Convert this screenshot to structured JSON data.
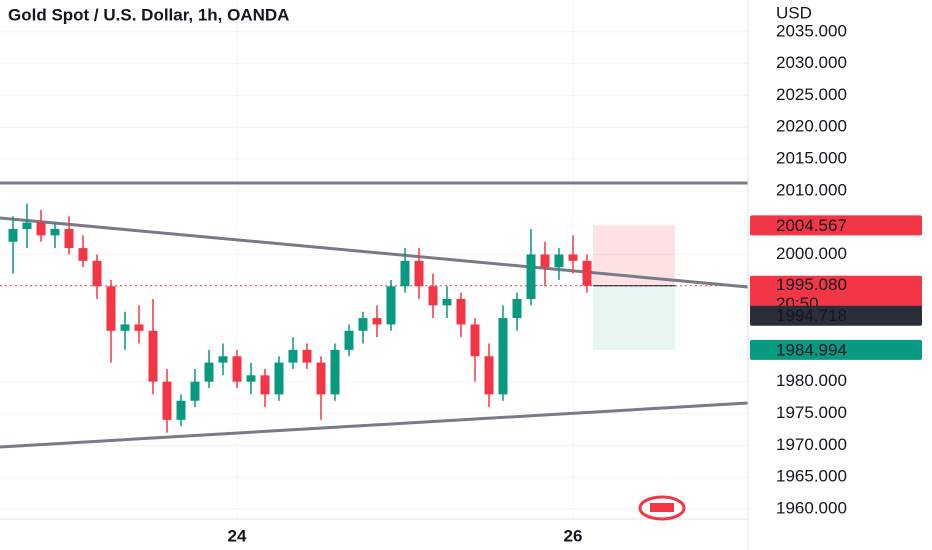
{
  "chart_data": {
    "type": "candlestick",
    "title": "Gold Spot / U.S. Dollar, 1h, OANDA",
    "y_axis_label": "USD",
    "categories": [
      null,
      null,
      null,
      null,
      null,
      null,
      null,
      null,
      null,
      null,
      null,
      null,
      null,
      null,
      null,
      null,
      "24",
      null,
      null,
      null,
      null,
      null,
      null,
      null,
      null,
      null,
      null,
      null,
      null,
      null,
      null,
      null,
      null,
      null,
      null,
      null,
      null,
      null,
      null,
      null,
      "26",
      null
    ],
    "open": [
      2002,
      2004,
      2005,
      2003,
      2004,
      2001,
      1999,
      1995,
      1988,
      1989,
      1988,
      1980,
      1974,
      1977,
      1980,
      1983,
      1984,
      1980,
      1981,
      1978,
      1983,
      1985,
      1983,
      1978,
      1985,
      1988,
      1990,
      1989,
      1995,
      1999,
      1995,
      1992,
      1993,
      1989,
      1984,
      1978,
      1990,
      1993,
      2000,
      1998,
      2000,
      1999
    ],
    "high": [
      2006,
      2008,
      2007,
      2005,
      2006,
      2003,
      2000,
      1996,
      1991,
      1992,
      1993,
      1982,
      1978,
      1982,
      1985,
      1986,
      1985,
      1983,
      1982,
      1984,
      1987,
      1986,
      1984,
      1986,
      1989,
      1991,
      1992,
      1996,
      2001,
      2001,
      1997,
      1995,
      1994,
      1990,
      1986,
      1992,
      1994,
      2004,
      2002,
      2001,
      2003,
      2000
    ],
    "low": [
      1997,
      2001,
      2002,
      2001,
      2000,
      1998,
      1993,
      1983,
      1985,
      1986,
      1978,
      1972,
      1973,
      1976,
      1979,
      1981,
      1979,
      1978,
      1976,
      1977,
      1982,
      1982,
      1974,
      1977,
      1984,
      1986,
      1987,
      1988,
      1994,
      1993,
      1990,
      1990,
      1987,
      1980,
      1976,
      1977,
      1988,
      1992,
      1995,
      1996,
      1997,
      1994
    ],
    "close": [
      2004,
      2005,
      2003,
      2004,
      2001,
      1999,
      1995,
      1988,
      1989,
      1988,
      1980,
      1974,
      1977,
      1980,
      1983,
      1984,
      1980,
      1981,
      1978,
      1983,
      1985,
      1983,
      1978,
      1985,
      1988,
      1990,
      1989,
      1995,
      1999,
      1995,
      1992,
      1993,
      1989,
      1984,
      1978,
      1990,
      1993,
      2000,
      1998,
      2000,
      1999,
      1995.08
    ],
    "up_color": "#089981",
    "down_color": "#f23645",
    "ylim": [
      1957,
      2040
    ],
    "yticks": [
      {
        "value": 1960,
        "label": "1960.000"
      },
      {
        "value": 1965,
        "label": "1965.000"
      },
      {
        "value": 1970,
        "label": "1970.000"
      },
      {
        "value": 1975,
        "label": "1975.000"
      },
      {
        "value": 1980,
        "label": "1980.000"
      },
      {
        "value": 2000,
        "label": "2000.000"
      },
      {
        "value": 2010,
        "label": "2010.000"
      },
      {
        "value": 2015,
        "label": "2015.000"
      },
      {
        "value": 2020,
        "label": "2020.000"
      },
      {
        "value": 2025,
        "label": "2025.000"
      },
      {
        "value": 2030,
        "label": "2030.000"
      },
      {
        "value": 2035,
        "label": "2035.000"
      }
    ],
    "grid": true,
    "price_labels": [
      {
        "value": 2004.567,
        "label": "2004.567",
        "color": "#f23645"
      },
      {
        "value": 1995.08,
        "label": "1995.080",
        "color": "#f23645"
      },
      {
        "value": 1994.718,
        "label": "1994.718",
        "color": "#2a2e39"
      },
      {
        "value": 1984.994,
        "label": "1984.994",
        "color": "#089981"
      }
    ],
    "countdown": "20:50"
  }
}
